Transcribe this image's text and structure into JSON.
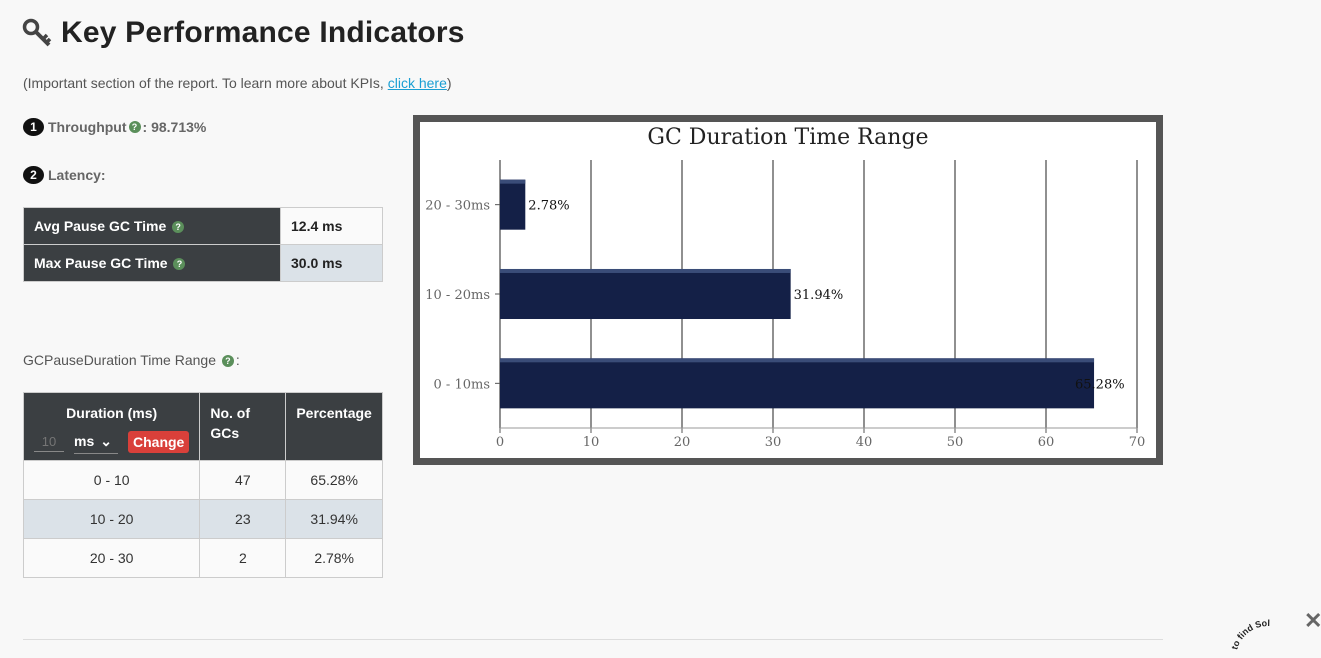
{
  "page": {
    "title": "Key Performance Indicators",
    "subtitle_prefix": "(Important section of the report. To learn more about KPIs, ",
    "subtitle_link": "click here",
    "subtitle_suffix": ")"
  },
  "kpi": {
    "throughput": {
      "badge": "1",
      "label": "Throughput",
      "value": " : 98.713%"
    },
    "latency": {
      "badge": "2",
      "label": "Latency:"
    }
  },
  "latency_table": [
    {
      "label": "Avg Pause GC Time",
      "value": "12.4 ms"
    },
    {
      "label": "Max Pause GC Time",
      "value": "30.0 ms"
    }
  ],
  "range_section": {
    "label": "GCPauseDuration Time Range",
    "label_suffix": ":",
    "headers": {
      "duration": "Duration (ms)",
      "count": "No. of GCs",
      "percentage": "Percentage"
    },
    "input_placeholder": "10",
    "unit": "ms",
    "change_label": "Change",
    "rows": [
      {
        "range": "0 - 10",
        "count": "47",
        "percentage": "65.28%"
      },
      {
        "range": "10 - 20",
        "count": "23",
        "percentage": "31.94%"
      },
      {
        "range": "20 - 30",
        "count": "2",
        "percentage": "2.78%"
      }
    ]
  },
  "close_label": "✕",
  "corner_text": "to find Sol",
  "colors": {
    "bar": "#142047",
    "header_bg": "#3b3f42",
    "change_btn": "#d9403a",
    "link": "#1a9fd3"
  },
  "chart_data": {
    "type": "bar",
    "orientation": "horizontal",
    "title": "GC Duration Time Range",
    "categories": [
      "0 - 10ms",
      "10 - 20ms",
      "20 - 30ms"
    ],
    "values": [
      65.28,
      31.94,
      2.78
    ],
    "data_labels": [
      "65.28%",
      "31.94%",
      "2.78%"
    ],
    "xlim": [
      0,
      70
    ],
    "xticks": [
      0,
      10,
      20,
      30,
      40,
      50,
      60,
      70
    ],
    "grid": true,
    "legend": "none"
  }
}
